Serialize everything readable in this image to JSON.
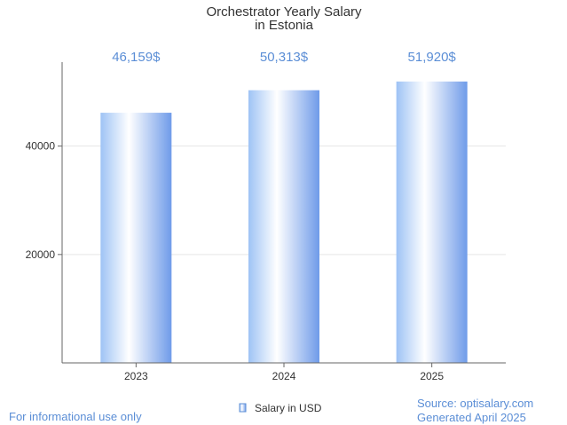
{
  "chart_data": {
    "type": "bar",
    "title": [
      "Orchestrator Yearly Salary",
      "in Estonia"
    ],
    "categories": [
      "2023",
      "2024",
      "2025"
    ],
    "series": [
      {
        "name": "Salary in USD",
        "values": [
          46159,
          50313,
          51920
        ]
      }
    ],
    "data_labels": [
      "46,159$",
      "50,313$",
      "51,920$"
    ],
    "yticks": [
      20000,
      40000
    ],
    "ylim": [
      0,
      55500
    ],
    "grid": true,
    "legend_position": "bottom"
  },
  "footer": {
    "left": "For informational use only",
    "source": "Source: optisalary.com",
    "generated": "Generated April 2025"
  },
  "colors": {
    "bar_light": "#ffffff",
    "bar_dark": "#6f9be9",
    "label": "#5b8ed6",
    "axis": "#666666",
    "grid": "#e6e6e6"
  }
}
